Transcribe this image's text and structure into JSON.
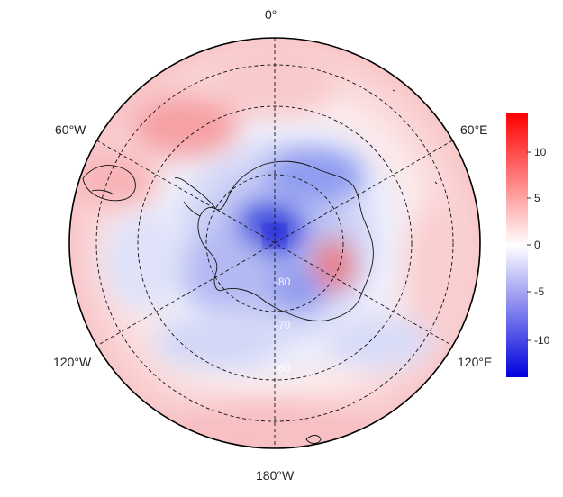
{
  "longitude_labels": {
    "top": "0°",
    "bottom": "180°W",
    "upper_left": "60°W",
    "upper_right": "60°E",
    "lower_left": "120°W",
    "lower_right": "120°E"
  },
  "latitude_labels": [
    "-80",
    "-70",
    "-60"
  ],
  "colorbar": {
    "ticks": [
      "10",
      "5",
      "0",
      "-5",
      "-10"
    ],
    "min": -14,
    "max": 14,
    "colors": {
      "low": "#0000dd",
      "mid": "#ffffff",
      "high": "#ff0000"
    }
  }
}
